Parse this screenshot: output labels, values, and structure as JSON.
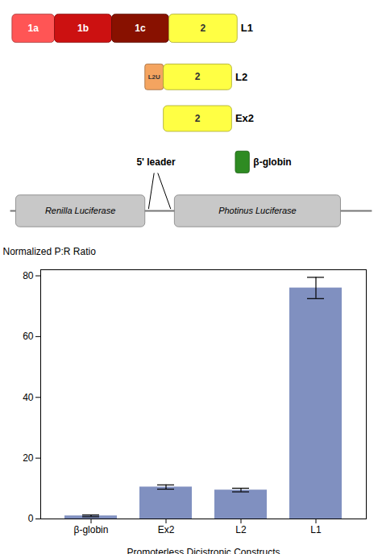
{
  "chart_data": {
    "type": "bar",
    "categories": [
      "β-globin",
      "Ex2",
      "L2",
      "L1"
    ],
    "values": [
      1.0,
      10.5,
      9.5,
      76.0
    ],
    "errors": [
      0.3,
      0.7,
      0.6,
      3.5
    ],
    "color": "#8090C0",
    "ylabel": "Normalized P:R Ratio",
    "xlabel": "Promoterless Dicistronic Constructs",
    "ylim": [
      0,
      82
    ],
    "yticks": [
      0,
      20,
      40,
      60,
      80
    ],
    "annotations": [
      {
        "text": "1a",
        "color": "#FF5555"
      },
      {
        "text": "1b",
        "color": "#CC1111"
      },
      {
        "text": "1c",
        "color": "#881100"
      },
      {
        "text": "2",
        "color": "#FFFF44"
      },
      {
        "text": "L1"
      },
      {
        "text": "L2U",
        "color": "#F4A460"
      },
      {
        "text": "2",
        "color": "#FFFF44"
      },
      {
        "text": "L2"
      },
      {
        "text": "2",
        "color": "#FFFF44"
      },
      {
        "text": "Ex2"
      },
      {
        "text": "β-globin",
        "color": "#2E8B22"
      },
      {
        "text": "Renilla Luciferase",
        "color": "#C8C8C8"
      },
      {
        "text": "Photinus Luciferase",
        "color": "#C8C8C8"
      },
      {
        "text": "5' leader"
      }
    ]
  }
}
